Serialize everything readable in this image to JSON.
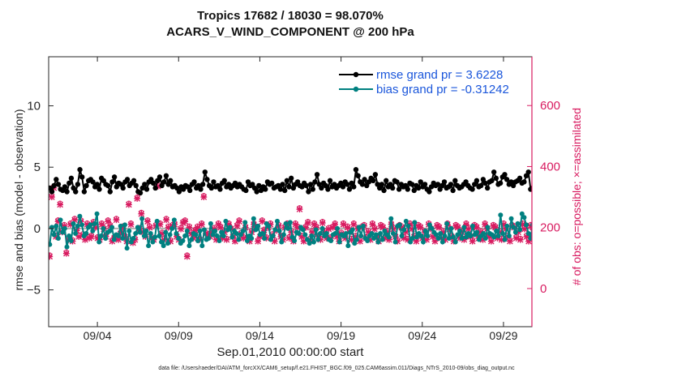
{
  "chart_data": {
    "type": "line",
    "title": "Tropics 17682 / 18030 = 98.070%",
    "subtitle": "ACARS_V_WIND_COMPONENT @ 200 hPa",
    "xlabel": "Sep.01,2010 00:00:00 start",
    "ylabel_left": "rmse and bias (model - observation)",
    "ylabel_right": "# of obs: o=possible; ×=assimilated",
    "footnote": "data file: /Users/raeder/DAI/ATM_forcXX/CAM6_setup/f.e21.FHIST_BGC.f09_025.CAM6assim.011/Diags_NTrS_2010-09/obs_diag_output.nc",
    "x_range_days": [
      0,
      29.75
    ],
    "x_ticks": [
      {
        "day": 3,
        "label": "09/04"
      },
      {
        "day": 8,
        "label": "09/09"
      },
      {
        "day": 13,
        "label": "09/14"
      },
      {
        "day": 18,
        "label": "09/19"
      },
      {
        "day": 23,
        "label": "09/24"
      },
      {
        "day": 28,
        "label": "09/29"
      }
    ],
    "y_left_range": [
      -8,
      14
    ],
    "y_left_ticks": [
      -5,
      0,
      5,
      10
    ],
    "y_right_range": [
      -125,
      760
    ],
    "y_right_ticks": [
      0,
      200,
      400,
      600
    ],
    "colors": {
      "rmse": "#000000",
      "bias": "#008080",
      "obs": "#d81b60",
      "right_axis": "#d81b60",
      "zero_line": "#b0b0b0",
      "legend_text": "#1a56db"
    },
    "series": [
      {
        "name": "rmse grand pr = 3.6228",
        "axis": "left",
        "marker": "diamond",
        "values": [
          3.3,
          3.0,
          3.5,
          4.0,
          3.6,
          3.2,
          3.1,
          3.4,
          3.0,
          3.7,
          4.1,
          3.3,
          3.0,
          3.6,
          4.8,
          4.2,
          3.0,
          3.5,
          3.9,
          4.0,
          3.8,
          3.4,
          3.6,
          3.2,
          4.1,
          3.9,
          3.6,
          3.5,
          3.0,
          3.8,
          4.2,
          3.4,
          3.7,
          3.6,
          3.3,
          3.8,
          4.0,
          3.5,
          3.7,
          3.9,
          3.5,
          3.0,
          2.9,
          3.3,
          3.6,
          3.2,
          3.8,
          4.0,
          3.7,
          3.3,
          3.9,
          4.2,
          3.5,
          3.8,
          4.3,
          3.6,
          3.9,
          3.4,
          3.5,
          3.3,
          3.0,
          3.4,
          3.2,
          3.5,
          3.4,
          3.1,
          3.6,
          3.8,
          3.3,
          3.5,
          3.2,
          3.6,
          4.6,
          4.0,
          3.5,
          3.3,
          3.8,
          3.4,
          3.5,
          3.2,
          3.7,
          3.9,
          3.4,
          3.6,
          3.3,
          3.5,
          3.7,
          3.4,
          3.6,
          3.4,
          3.2,
          3.1,
          3.8,
          3.5,
          3.6,
          3.3,
          3.0,
          3.5,
          3.1,
          3.4,
          3.2,
          3.8,
          3.6,
          3.7,
          3.3,
          3.4,
          3.5,
          3.2,
          3.6,
          3.1,
          3.9,
          3.4,
          4.1,
          3.3,
          3.6,
          3.8,
          3.5,
          3.4,
          3.7,
          3.5,
          3.0,
          3.6,
          3.2,
          3.8,
          4.4,
          3.6,
          3.3,
          3.7,
          3.5,
          3.2,
          3.9,
          3.4,
          3.6,
          3.3,
          3.5,
          3.7,
          3.4,
          3.8,
          3.6,
          3.2,
          3.7,
          3.4,
          4.8,
          4.3,
          3.8,
          3.6,
          4.0,
          3.5,
          3.8,
          4.1,
          3.9,
          4.4,
          3.6,
          3.3,
          3.6,
          3.1,
          3.9,
          3.4,
          3.6,
          3.3,
          3.9,
          3.8,
          3.2,
          3.6,
          3.4,
          3.5,
          3.2,
          3.7,
          3.6,
          3.1,
          3.5,
          3.3,
          3.8,
          3.4,
          3.6,
          3.2,
          3.0,
          3.4,
          3.7,
          3.5,
          3.6,
          3.2,
          3.5,
          3.8,
          3.3,
          3.4,
          3.6,
          3.1,
          3.9,
          3.5,
          3.3,
          3.4,
          3.6,
          3.8,
          3.5,
          3.3,
          3.2,
          3.6,
          3.9,
          3.4,
          3.5,
          4.0,
          3.7,
          3.3,
          3.8,
          3.9,
          4.6,
          4.1,
          3.6,
          3.7,
          4.2,
          4.4,
          4.0,
          3.6,
          3.8,
          3.5,
          3.8,
          3.9,
          4.1,
          3.7,
          3.8,
          4.3,
          4.6,
          3.2,
          3.3,
          3.2
        ]
      },
      {
        "name": "bias grand pr = -0.31242",
        "axis": "left",
        "marker": "circle",
        "values": [
          -1.3,
          0.1,
          -0.5,
          0.2,
          -0.8,
          0.7,
          -0.3,
          0.0,
          -1.5,
          -0.6,
          -1.0,
          0.4,
          -0.4,
          0.2,
          1.0,
          0.3,
          -0.6,
          -0.4,
          0.1,
          0.3,
          -0.2,
          0.4,
          1.2,
          -1.1,
          -0.6,
          0.0,
          -0.8,
          -0.3,
          -0.2,
          0.1,
          -0.9,
          -0.5,
          -0.6,
          0.2,
          -0.8,
          0.3,
          -1.6,
          -0.2,
          -1.1,
          -0.8,
          -0.4,
          0.1,
          -0.3,
          0.8,
          -0.6,
          -0.2,
          -1.4,
          -0.4,
          -1.1,
          -0.7,
          0.6,
          -0.6,
          -1.1,
          -1.4,
          -0.3,
          -1.2,
          -0.5,
          0.0,
          0.7,
          -0.4,
          -0.8,
          -1.2,
          -1.0,
          -0.6,
          -0.2,
          -1.4,
          -0.9,
          -0.4,
          -0.5,
          -1.0,
          -0.2,
          -1.4,
          -0.1,
          -0.9,
          -0.8,
          0.4,
          -0.5,
          -0.2,
          -0.6,
          -1.0,
          -0.3,
          -0.6,
          0.6,
          -0.1,
          0.1,
          -0.7,
          -0.2,
          -0.4,
          -0.9,
          -0.5,
          -0.2,
          0.5,
          -1.0,
          -0.6,
          -0.8,
          0.8,
          -0.1,
          0.2,
          -0.5,
          -0.4,
          -0.8,
          0.4,
          0.2,
          -0.9,
          -0.6,
          -0.1,
          0.6,
          -0.2,
          -1.1,
          -0.5,
          0.4,
          0.0,
          0.5,
          -0.7,
          -1.0,
          -0.3,
          -0.4,
          0.1,
          -0.1,
          -0.5,
          -0.9,
          -1.2,
          -0.6,
          -1.1,
          -0.1,
          -0.9,
          -0.4,
          0.0,
          -0.6,
          -0.4,
          -0.9,
          -1.0,
          -0.5,
          -0.4,
          0.0,
          -1.1,
          -0.5,
          -0.6,
          -0.4,
          -1.4,
          -0.3,
          -0.1,
          -1.2,
          -0.9,
          0.1,
          -0.6,
          0.2,
          -0.8,
          -1.0,
          -0.6,
          -0.4,
          -0.8,
          -0.5,
          -1.1,
          -0.4,
          -0.9,
          -0.2,
          -0.5,
          -0.7,
          0.8,
          -0.4,
          -1.1,
          0.2,
          0.3,
          -0.6,
          -0.1,
          0.6,
          0.2,
          -1.1,
          -0.8,
          0.5,
          -0.7,
          -0.4,
          -0.6,
          -1.1,
          -0.2,
          -0.6,
          0.3,
          0.0,
          -0.3,
          -0.5,
          -0.8,
          -0.4,
          -1.1,
          -0.6,
          0.4,
          -0.8,
          0.0,
          -0.7,
          -1.1,
          -0.5,
          -0.2,
          -0.8,
          0.1,
          -0.7,
          -0.4,
          -0.6,
          0.2,
          -0.5,
          -0.3,
          -0.9,
          -0.6,
          -0.4,
          -0.8,
          0.1,
          -0.4,
          -0.5,
          -0.7,
          -0.2,
          -0.6,
          1.1,
          -0.4,
          -0.9,
          0.2,
          -0.6,
          0.8,
          0.1,
          -0.3,
          0.4,
          -0.1,
          1.2,
          0.9,
          0.3,
          -0.4,
          -0.8,
          0.3,
          0.1
        ]
      },
      {
        "name": "obs possible (o)",
        "axis": "right",
        "marker": "circle-open",
        "values": [
          110,
          305,
          335,
          175,
          225,
          280,
          190,
          210,
          120,
          165,
          215,
          160,
          230,
          195,
          175,
          225,
          180,
          165,
          215,
          170,
          175,
          220,
          205,
          170,
          165,
          215,
          200,
          175,
          225,
          210,
          160,
          170,
          230,
          165,
          185,
          205,
          175,
          160,
          280,
          215,
          155,
          165,
          300,
          200,
          250,
          190,
          175,
          225,
          205,
          170,
          165,
          210,
          340,
          215,
          185,
          165,
          230,
          205,
          160,
          210,
          215,
          175,
          165,
          200,
          220,
          225,
          110,
          205,
          185,
          170,
          195,
          205,
          165,
          215,
          305,
          185,
          180,
          175,
          190,
          200,
          165,
          215,
          205,
          170,
          190,
          165,
          215,
          200,
          175,
          160,
          210,
          225,
          185,
          170,
          205,
          170,
          160,
          190,
          215,
          205,
          160,
          175,
          225,
          195,
          170,
          205,
          215,
          180,
          160,
          195,
          210,
          175,
          165,
          205,
          215,
          170,
          190,
          160,
          215,
          205,
          265,
          175,
          160,
          205,
          220,
          165,
          190,
          215,
          205,
          175,
          165,
          220,
          190,
          170,
          200,
          170,
          205,
          215,
          175,
          160,
          185,
          215,
          170,
          205,
          190,
          165,
          215,
          175,
          200,
          160,
          205,
          210,
          170,
          190,
          165,
          215,
          200,
          175,
          160,
          210,
          205,
          170,
          190,
          165,
          215,
          200,
          175,
          160,
          210,
          205,
          170,
          190,
          165,
          215,
          200,
          175,
          160,
          210,
          205,
          170,
          190,
          165,
          215,
          200,
          175,
          160,
          210,
          205,
          170,
          190,
          165,
          215,
          200,
          175,
          160,
          210,
          205,
          170,
          190,
          165,
          215,
          200,
          175,
          160,
          210,
          205,
          170,
          190,
          165,
          215,
          200,
          175,
          160,
          210,
          205,
          170,
          190,
          165,
          215,
          200,
          175,
          160,
          210,
          205,
          170,
          190,
          165,
          215,
          200,
          175,
          160,
          210,
          205,
          170
        ]
      },
      {
        "name": "obs assimilated (×)",
        "axis": "right",
        "marker": "cross",
        "values": [
          105,
          300,
          330,
          170,
          220,
          275,
          185,
          205,
          115,
          160,
          210,
          155,
          225,
          190,
          170,
          220,
          175,
          160,
          210,
          165,
          170,
          215,
          200,
          165,
          160,
          210,
          195,
          170,
          220,
          205,
          155,
          165,
          225,
          160,
          180,
          200,
          170,
          155,
          275,
          210,
          150,
          160,
          295,
          195,
          245,
          185,
          170,
          220,
          200,
          165,
          160,
          205,
          335,
          210,
          180,
          160,
          225,
          200,
          155,
          205,
          210,
          170,
          160,
          195,
          215,
          220,
          105,
          200,
          180,
          165,
          190,
          200,
          160,
          210,
          300,
          180,
          175,
          170,
          185,
          195,
          160,
          210,
          200,
          165,
          185,
          160,
          210,
          195,
          170,
          155,
          205,
          220,
          180,
          165,
          200,
          165,
          155,
          185,
          210,
          200,
          155,
          170,
          220,
          190,
          165,
          200,
          210,
          175,
          155,
          190,
          205,
          170,
          160,
          200,
          210,
          165,
          185,
          155,
          210,
          200,
          260,
          170,
          155,
          200,
          215,
          160,
          185,
          210,
          200,
          170,
          160,
          215,
          185,
          165,
          195,
          165,
          200,
          210,
          170,
          155,
          180,
          210,
          165,
          200,
          185,
          160,
          210,
          170,
          195,
          155,
          200,
          205,
          165,
          185,
          160,
          210,
          195,
          170,
          155,
          205,
          200,
          165,
          185,
          160,
          210,
          195,
          170,
          155,
          205,
          200,
          165,
          185,
          160,
          210,
          195,
          170,
          155,
          205,
          200,
          165,
          185,
          160,
          210,
          195,
          170,
          155,
          205,
          200,
          165,
          185,
          160,
          210,
          195,
          170,
          155,
          205,
          200,
          165,
          185,
          160,
          210,
          195,
          170,
          155,
          205,
          200,
          165,
          185,
          160,
          210,
          195,
          170,
          155,
          205,
          200,
          165,
          185,
          160,
          210,
          195,
          170,
          155,
          205,
          200,
          165,
          185,
          160,
          210,
          195,
          170,
          155,
          205,
          200,
          165
        ]
      }
    ]
  }
}
